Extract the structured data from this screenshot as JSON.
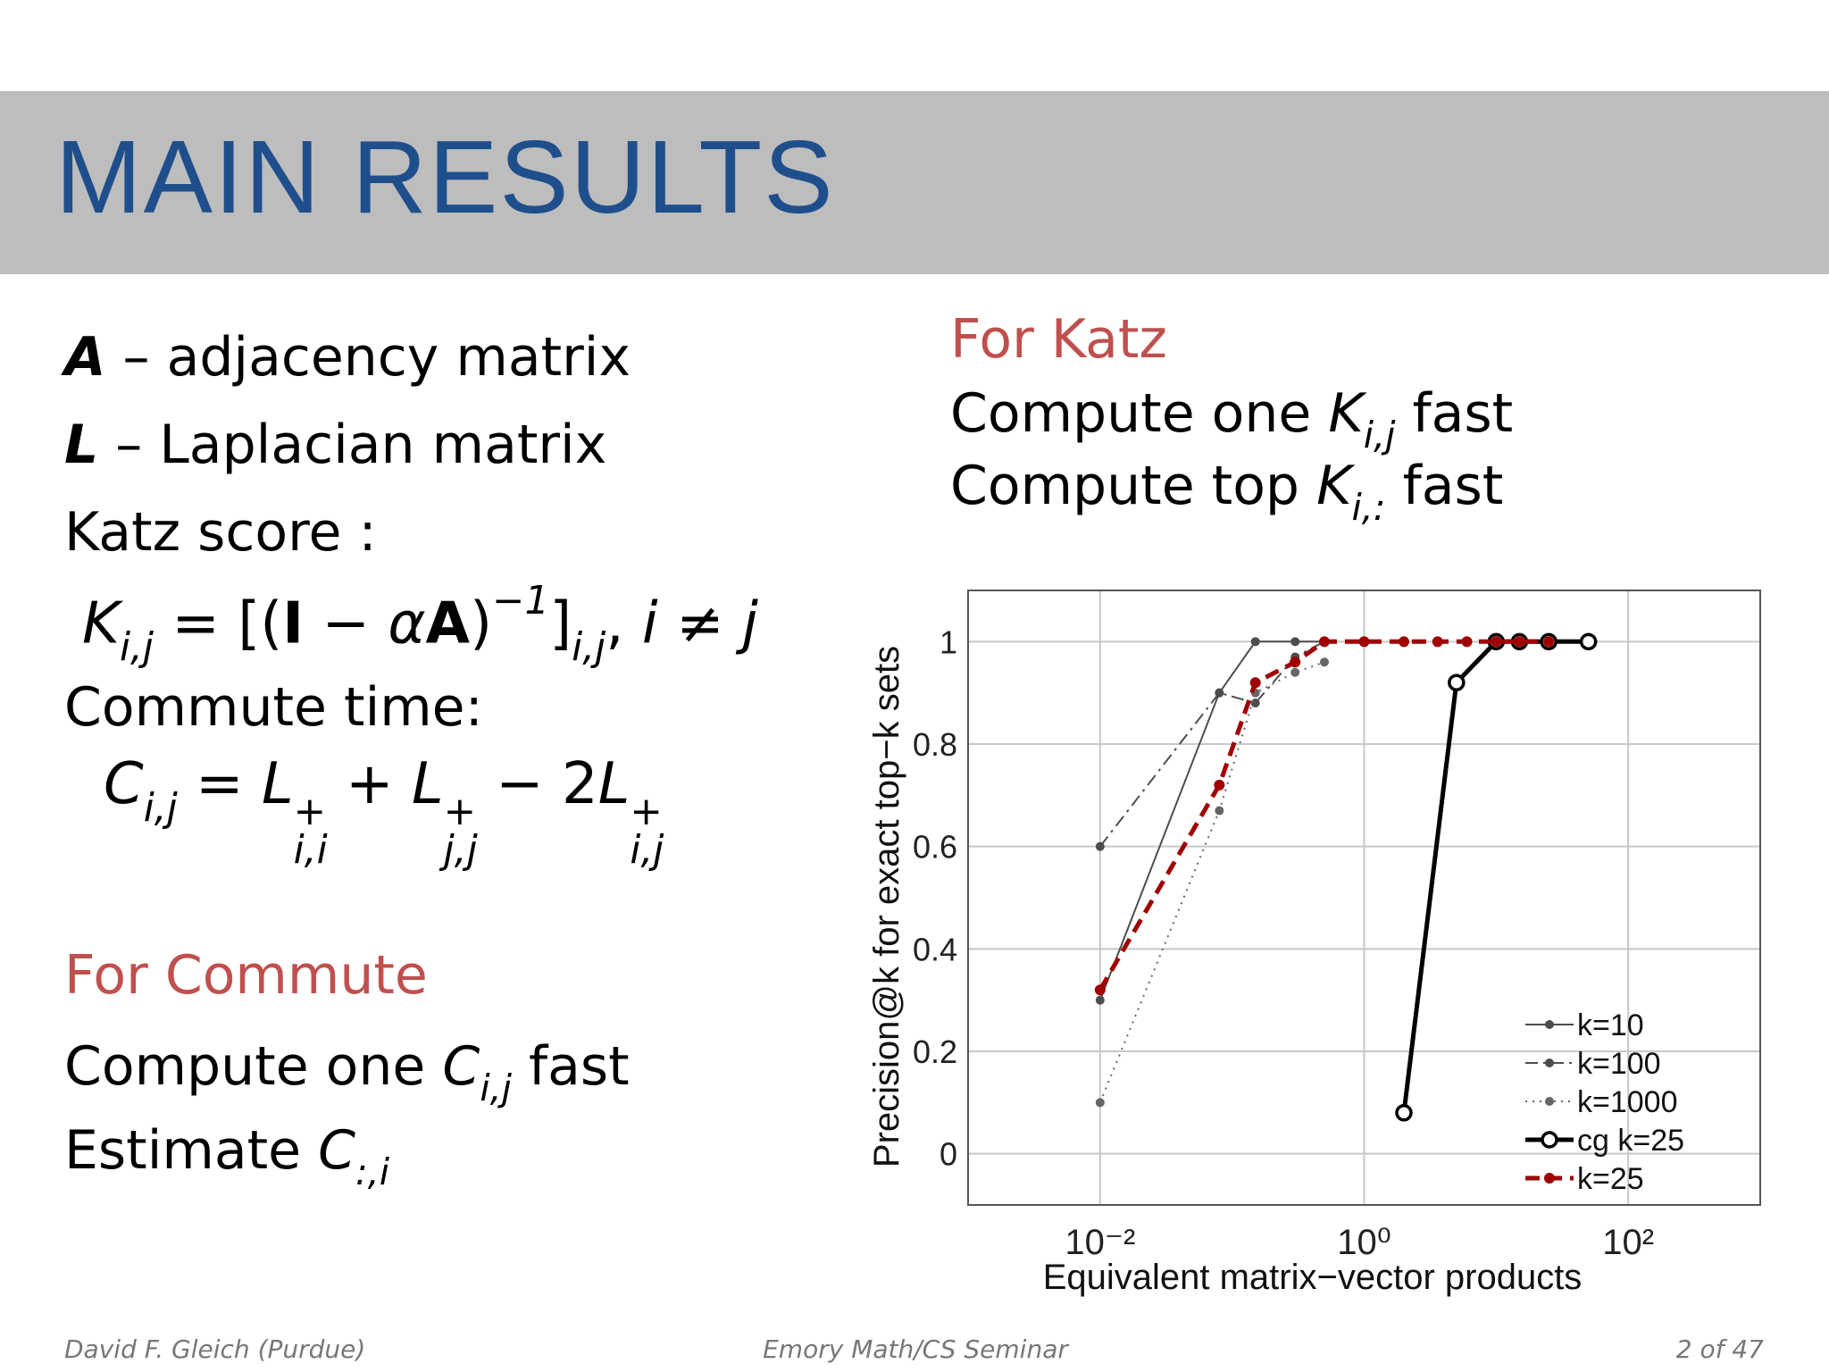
{
  "header": {
    "title": "MAIN RESULTS"
  },
  "definitions": [
    {
      "symbol": "A",
      "text": " – adjacency matrix"
    },
    {
      "symbol": "L",
      "text": " – Laplacian matrix"
    }
  ],
  "katz": {
    "label": "Katz score :",
    "formula": [
      {
        "text": "K",
        "sub": "i,j",
        "italic": true
      },
      {
        "text": " = [("
      },
      {
        "text": "I",
        "bold": true
      },
      {
        "text": " − "
      },
      {
        "text": "α",
        "italic": true
      },
      {
        "text": "A",
        "bold": true
      },
      {
        "text": ")",
        "sup": "−1"
      },
      {
        "text": "]",
        "sub": "i,j"
      },
      {
        "text": ", "
      },
      {
        "text": "i",
        "italic": true
      },
      {
        "text": " ≠ "
      },
      {
        "text": "j",
        "italic": true
      }
    ]
  },
  "commute": {
    "label": "Commute time:",
    "formula": [
      {
        "text": "C",
        "sub": "i,j",
        "italic": true
      },
      {
        "text": " = "
      },
      {
        "text": "L",
        "sup": "+",
        "sub": "i,i",
        "italic": true
      },
      {
        "text": " + "
      },
      {
        "text": "L",
        "sup": "+",
        "sub": "j,j",
        "italic": true
      },
      {
        "text": " − 2"
      },
      {
        "text": "L",
        "sup": "+",
        "sub": "i,j",
        "italic": true
      }
    ]
  },
  "for_katz": {
    "heading": "For Katz",
    "items": [
      [
        {
          "text": "Compute one "
        },
        {
          "text": "K",
          "sub": "i,j",
          "italic": true
        },
        {
          "text": " fast"
        }
      ],
      [
        {
          "text": "Compute top "
        },
        {
          "text": "K",
          "sub": "i,:",
          "italic": true
        },
        {
          "text": " fast"
        }
      ]
    ]
  },
  "for_commute": {
    "heading": "For Commute",
    "items": [
      [
        {
          "text": "Compute one "
        },
        {
          "text": "C",
          "sub": "i,j",
          "italic": true
        },
        {
          "text": " fast"
        }
      ],
      [
        {
          "text": "Estimate "
        },
        {
          "text": "C",
          "sub": ":,i",
          "italic": true
        }
      ]
    ]
  },
  "footer": {
    "author": "David F. Gleich (Purdue)",
    "venue": "Emory Math/CS Seminar",
    "page": "2 of 47"
  },
  "chart_data": {
    "type": "line",
    "x_label": "Equivalent matrix−vector products",
    "y_label": "Precision@k for exact top−k sets",
    "xscale": "log",
    "xlim": [
      0.001,
      1000
    ],
    "xticks": [
      {
        "value": 0.01,
        "label": "10⁻²"
      },
      {
        "value": 1,
        "label": "10⁰"
      },
      {
        "value": 100,
        "label": "10²"
      }
    ],
    "ylim": [
      -0.1,
      1.1
    ],
    "yticks": [
      0,
      0.2,
      0.4,
      0.6,
      0.8,
      1
    ],
    "grid": true,
    "legend": "lower right",
    "series": [
      {
        "name": "k=10",
        "color": "#4d4d4d",
        "line_style": "solid",
        "marker": "dot",
        "x": [
          0.01,
          0.08,
          0.15,
          0.3,
          0.5
        ],
        "values": [
          0.3,
          0.9,
          1,
          1,
          1
        ]
      },
      {
        "name": "k=100",
        "color": "#4d4d4d",
        "line_style": "dash-dot",
        "marker": "dot",
        "x": [
          0.01,
          0.08,
          0.15,
          0.3,
          0.5
        ],
        "values": [
          0.6,
          0.9,
          0.88,
          0.97,
          1
        ]
      },
      {
        "name": "k=1000",
        "color": "#666666",
        "line_style": "dotted",
        "marker": "dot",
        "x": [
          0.01,
          0.08,
          0.15,
          0.3,
          0.5
        ],
        "values": [
          0.1,
          0.67,
          0.9,
          0.94,
          0.96
        ]
      },
      {
        "name": "cg k=25",
        "color": "#000000",
        "line_style": "solid-bold",
        "marker": "open-circle",
        "x": [
          2,
          5,
          10,
          15,
          25,
          50
        ],
        "values": [
          0.08,
          0.92,
          1,
          1,
          1,
          1
        ]
      },
      {
        "name": "k=25",
        "color": "#a00000",
        "line_style": "dashed-bold",
        "marker": "dot",
        "x": [
          0.01,
          0.08,
          0.15,
          0.3,
          0.5,
          1,
          2,
          3.6,
          6,
          10,
          15,
          25
        ],
        "values": [
          0.32,
          0.72,
          0.92,
          0.96,
          1,
          1,
          1,
          1,
          1,
          1,
          1,
          1
        ]
      }
    ]
  }
}
